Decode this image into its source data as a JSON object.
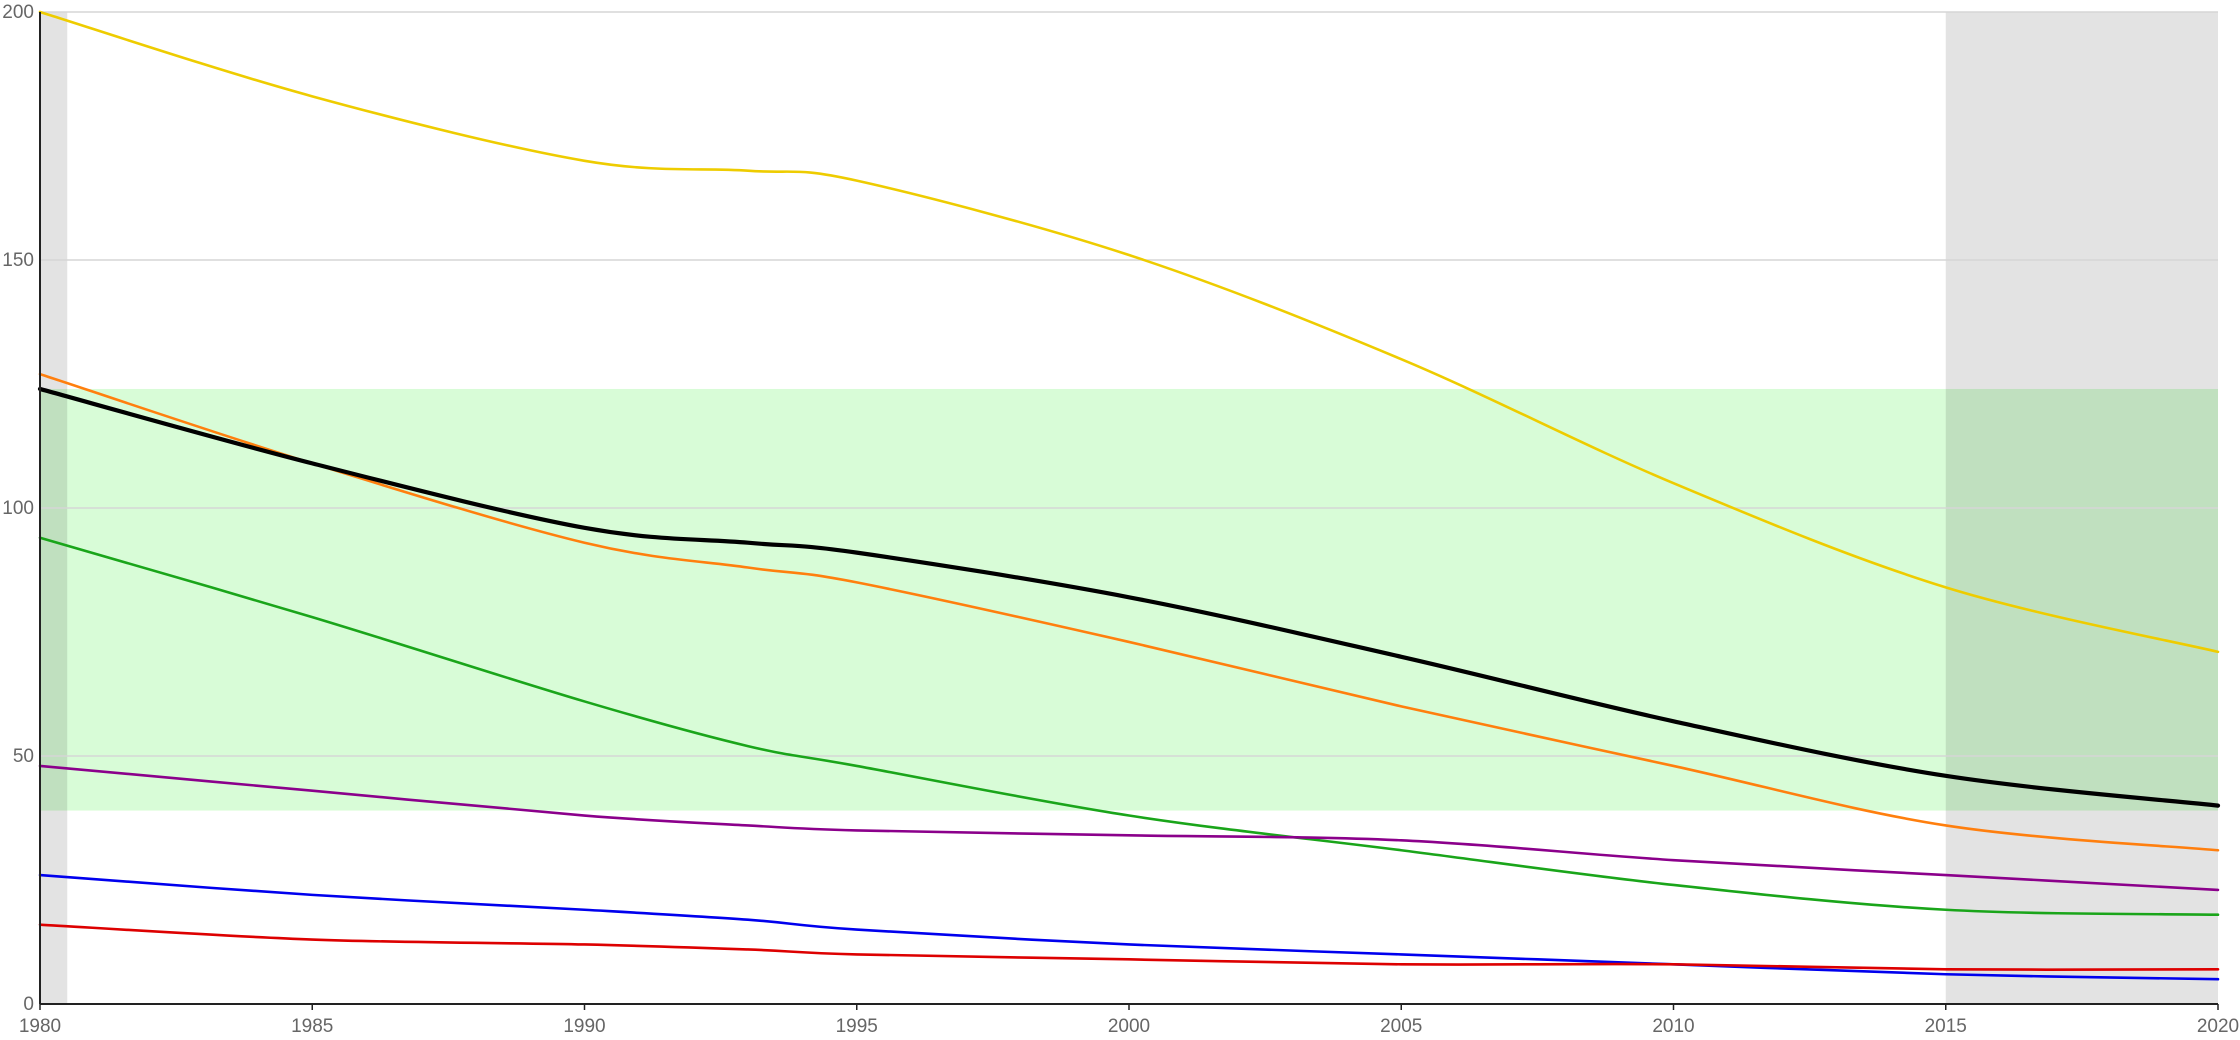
{
  "chart_data": {
    "type": "line",
    "title": "",
    "xlabel": "",
    "ylabel": "",
    "xlim": [
      1980,
      2020
    ],
    "ylim": [
      0,
      200
    ],
    "x_ticks": [
      "1980",
      "1985",
      "1990",
      "1995",
      "2000",
      "2005",
      "2010",
      "2015",
      "2020"
    ],
    "y_ticks": [
      "0",
      "50",
      "100",
      "150",
      "200"
    ],
    "grid": "horizontal",
    "background_bands": [
      {
        "kind": "y-range",
        "from": 39,
        "to": 124,
        "color": "#d8fcd7"
      },
      {
        "kind": "x-range",
        "from": 1980,
        "to": 1980.5,
        "color": "#e0e0e0"
      },
      {
        "kind": "x-range",
        "from": 2015,
        "to": 2020,
        "color": "#e0e0e0"
      }
    ],
    "x": [
      1980,
      1985,
      1990,
      1993,
      1995,
      2000,
      2005,
      2010,
      2015,
      2020
    ],
    "series": [
      {
        "color": "#eecc00",
        "width": 2.6,
        "values": [
          200,
          183,
          170,
          168,
          166,
          151,
          130,
          105,
          84,
          71
        ]
      },
      {
        "color": "#ff7f0e",
        "width": 2.6,
        "values": [
          127,
          109,
          93,
          88,
          85,
          73,
          60,
          48,
          36,
          31
        ]
      },
      {
        "color": "#000000",
        "width": 4.2,
        "values": [
          124,
          109,
          96,
          93,
          91,
          82,
          70,
          57,
          46,
          40
        ]
      },
      {
        "color": "#1aa51a",
        "width": 2.6,
        "values": [
          94,
          78,
          61,
          52,
          48,
          38,
          31,
          24,
          19,
          18
        ]
      },
      {
        "color": "#8b008b",
        "width": 2.6,
        "values": [
          48,
          43,
          38,
          36,
          35,
          34,
          33,
          29,
          26,
          23
        ]
      },
      {
        "color": "#0000ee",
        "width": 2.6,
        "values": [
          26,
          22,
          19,
          17,
          15,
          12,
          10,
          8,
          6,
          5
        ]
      },
      {
        "color": "#dd0000",
        "width": 2.6,
        "values": [
          16,
          13,
          12,
          11,
          10,
          9,
          8,
          8,
          7,
          7
        ]
      }
    ]
  }
}
